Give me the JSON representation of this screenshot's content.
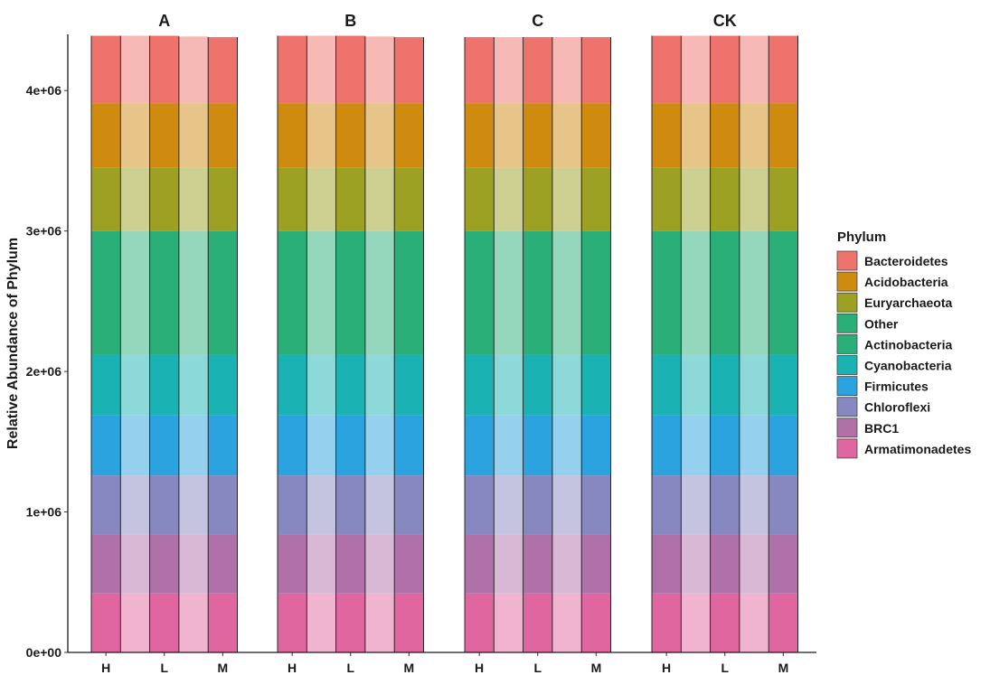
{
  "chart_data": {
    "type": "bar",
    "stacked": true,
    "facets": [
      "A",
      "B",
      "C",
      "CK"
    ],
    "categories": [
      "H",
      "L",
      "M"
    ],
    "ylabel": "Relative Abundance of Phylum",
    "xlabel": "",
    "ylim": [
      0,
      4400000
    ],
    "yticks": [
      0,
      1000000,
      2000000,
      3000000,
      4000000
    ],
    "ytick_labels": [
      "0e+00",
      "1e+06",
      "2e+06",
      "3e+06",
      "4e+06"
    ],
    "legend": {
      "title": "Phylum",
      "position": "right"
    },
    "grid": false,
    "note_alternate_translucent": "sub-columns alternate full and light shading",
    "series": [
      {
        "name": "Armatimonadetes",
        "color": "#E066A0",
        "values": {
          "A": [
            420000,
            420000,
            420000
          ],
          "B": [
            420000,
            420000,
            420000
          ],
          "C": [
            420000,
            420000,
            420000
          ],
          "CK": [
            420000,
            420000,
            420000
          ]
        }
      },
      {
        "name": "BRC1",
        "color": "#B070A8",
        "values": {
          "A": [
            420000,
            420000,
            420000
          ],
          "B": [
            420000,
            420000,
            420000
          ],
          "C": [
            420000,
            420000,
            420000
          ],
          "CK": [
            420000,
            420000,
            420000
          ]
        }
      },
      {
        "name": "Chloroflexi",
        "color": "#8888C0",
        "values": {
          "A": [
            420000,
            420000,
            420000
          ],
          "B": [
            420000,
            420000,
            420000
          ],
          "C": [
            420000,
            420000,
            420000
          ],
          "CK": [
            420000,
            420000,
            420000
          ]
        }
      },
      {
        "name": "Firmicutes",
        "color": "#2AA3DE",
        "values": {
          "A": [
            430000,
            430000,
            430000
          ],
          "B": [
            430000,
            430000,
            430000
          ],
          "C": [
            430000,
            430000,
            430000
          ],
          "CK": [
            430000,
            430000,
            430000
          ]
        }
      },
      {
        "name": "Cyanobacteria",
        "color": "#1AB2B2",
        "values": {
          "A": [
            430000,
            430000,
            430000
          ],
          "B": [
            430000,
            430000,
            430000
          ],
          "C": [
            430000,
            430000,
            430000
          ],
          "CK": [
            430000,
            430000,
            430000
          ]
        }
      },
      {
        "name": "Actinobacteria",
        "color": "#2AAF79",
        "values": {
          "A": [
            880000,
            880000,
            880000
          ],
          "B": [
            880000,
            880000,
            880000
          ],
          "C": [
            880000,
            880000,
            880000
          ],
          "CK": [
            880000,
            880000,
            880000
          ]
        }
      },
      {
        "name": "Other",
        "color": "#2AAF79",
        "values": {
          "A": [
            0,
            0,
            0
          ],
          "B": [
            0,
            0,
            0
          ],
          "C": [
            0,
            0,
            0
          ],
          "CK": [
            0,
            0,
            0
          ]
        }
      },
      {
        "name": "Euryarchaeota",
        "color": "#9CA023",
        "values": {
          "A": [
            450000,
            450000,
            450000
          ],
          "B": [
            450000,
            450000,
            450000
          ],
          "C": [
            450000,
            450000,
            450000
          ],
          "CK": [
            450000,
            450000,
            450000
          ]
        }
      },
      {
        "name": "Acidobacteria",
        "color": "#CF8A10",
        "values": {
          "A": [
            460000,
            460000,
            460000
          ],
          "B": [
            460000,
            460000,
            460000
          ],
          "C": [
            460000,
            460000,
            460000
          ],
          "CK": [
            460000,
            460000,
            460000
          ]
        }
      },
      {
        "name": "Bacteroidetes",
        "color": "#EE736C",
        "values": {
          "A": [
            480000,
            480000,
            470000
          ],
          "B": [
            480000,
            480000,
            470000
          ],
          "C": [
            470000,
            470000,
            470000
          ],
          "CK": [
            480000,
            480000,
            480000
          ]
        }
      }
    ],
    "legend_order": [
      "Bacteroidetes",
      "Acidobacteria",
      "Euryarchaeota",
      "Other",
      "Actinobacteria",
      "Cyanobacteria",
      "Firmicutes",
      "Chloroflexi",
      "BRC1",
      "Armatimonadetes"
    ]
  }
}
